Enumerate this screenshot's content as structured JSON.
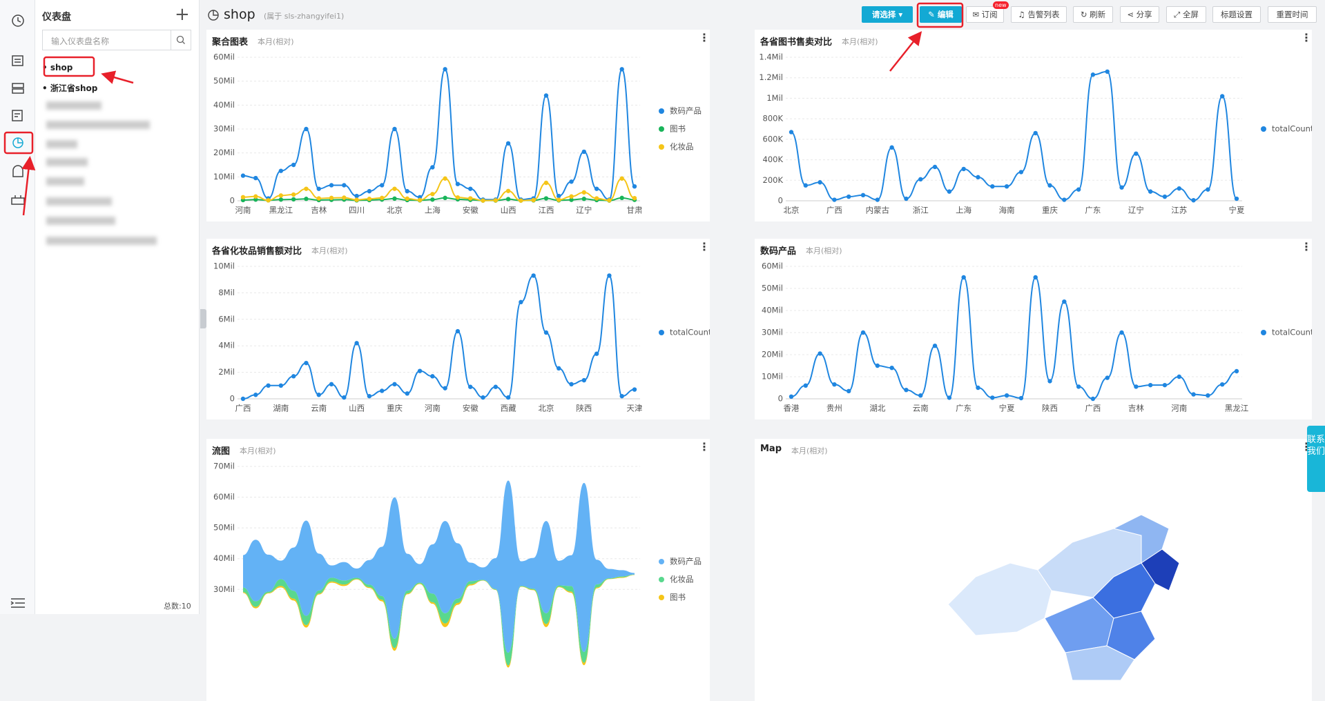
{
  "sidebar": {
    "title": "仪表盘",
    "search_placeholder": "输入仪表盘名称",
    "items": [
      "shop",
      "浙江省shop"
    ],
    "total": "总数:10"
  },
  "header": {
    "title": "shop",
    "owner": "(属于 sls-zhangyifei1)"
  },
  "toolbar": {
    "select": "请选择",
    "edit": "编辑",
    "subscribe": "订阅",
    "new_badge": "new",
    "alerts": "告警列表",
    "refresh": "刷新",
    "share": "分享",
    "fullscreen": "全屏",
    "title_settings": "标题设置",
    "reset_time": "重置时间"
  },
  "contact": "联系我们",
  "panels": [
    {
      "type": "line",
      "title": "聚合图表",
      "subtitle": "本月(相对)",
      "categories": [
        "河南",
        null,
        null,
        "黑龙江",
        null,
        null,
        "吉林",
        null,
        null,
        "四川",
        null,
        null,
        "北京",
        null,
        null,
        "上海",
        null,
        null,
        "安徽",
        null,
        null,
        "山西",
        null,
        null,
        "江西",
        null,
        null,
        "辽宁",
        null,
        null,
        null,
        "甘肃"
      ],
      "ylim": [
        0,
        60000000
      ],
      "yticks": [
        0,
        {
          "value": 10000000,
          "label": "10Mil"
        },
        {
          "value": 20000000,
          "label": "20Mil"
        },
        {
          "value": 30000000,
          "label": "30Mil"
        },
        {
          "value": 40000000,
          "label": "40Mil"
        },
        {
          "value": 50000000,
          "label": "50Mil"
        },
        {
          "value": 60000000,
          "label": "60Mil"
        }
      ],
      "series": [
        {
          "name": "数码产品",
          "color": "#1f86e0",
          "values": [
            10500000,
            9500000,
            1000000,
            12500000,
            15000000,
            30000000,
            5000000,
            6500000,
            6500000,
            2000000,
            4000000,
            6500000,
            30000000,
            4000000,
            1500000,
            14000000,
            55000000,
            7000000,
            5000000,
            500000,
            500000,
            24000000,
            500000,
            1000000,
            44000000,
            2000000,
            8000000,
            20500000,
            5000000,
            500000,
            55000000,
            6000000
          ]
        },
        {
          "name": "图书",
          "color": "#19b45a",
          "values": [
            300000,
            500000,
            200000,
            500000,
            600000,
            800000,
            300000,
            400000,
            500000,
            200000,
            300000,
            500000,
            900000,
            300000,
            200000,
            500000,
            1200000,
            600000,
            400000,
            100000,
            100000,
            700000,
            100000,
            200000,
            1000000,
            200000,
            400000,
            800000,
            300000,
            100000,
            1200000,
            400000
          ]
        },
        {
          "name": "化妆品",
          "color": "#f5c518",
          "values": [
            1500000,
            1800000,
            200000,
            2200000,
            2600000,
            5000000,
            1000000,
            1200000,
            1300000,
            400000,
            800000,
            1200000,
            5000000,
            900000,
            300000,
            2800000,
            9300000,
            1400000,
            1000000,
            100000,
            200000,
            4100000,
            100000,
            300000,
            7500000,
            400000,
            1800000,
            3500000,
            1000000,
            200000,
            9300000,
            1100000
          ]
        }
      ]
    },
    {
      "type": "line",
      "title": "各省图书售卖对比",
      "subtitle": "本月(相对)",
      "categories": [
        "北京",
        null,
        null,
        "广西",
        null,
        null,
        "内蒙古",
        null,
        null,
        "浙江",
        null,
        null,
        "上海",
        null,
        null,
        "海南",
        null,
        null,
        "重庆",
        null,
        null,
        "广东",
        null,
        null,
        "辽宁",
        null,
        null,
        "江苏",
        null,
        null,
        null,
        "宁夏"
      ],
      "ylim": [
        0,
        1400000
      ],
      "yticks": [
        0,
        {
          "value": 200000,
          "label": "200K"
        },
        {
          "value": 400000,
          "label": "400K"
        },
        {
          "value": 600000,
          "label": "600K"
        },
        {
          "value": 800000,
          "label": "800K"
        },
        {
          "value": 1000000,
          "label": "1Mil"
        },
        {
          "value": 1200000,
          "label": "1.2Mil"
        },
        {
          "value": 1400000,
          "label": "1.4Mil"
        }
      ],
      "series": [
        {
          "name": "totalCount",
          "color": "#1f86e0",
          "values": [
            670000,
            150000,
            180000,
            10000,
            40000,
            55000,
            10000,
            520000,
            20000,
            210000,
            330000,
            90000,
            310000,
            230000,
            140000,
            140000,
            280000,
            660000,
            150000,
            10000,
            110000,
            1230000,
            1260000,
            130000,
            460000,
            90000,
            40000,
            120000,
            5000,
            110000,
            1020000,
            20000
          ]
        }
      ]
    },
    {
      "type": "line",
      "title": "各省化妆品销售额对比",
      "subtitle": "本月(相对)",
      "categories": [
        "广西",
        null,
        null,
        "湖南",
        null,
        null,
        "云南",
        null,
        null,
        "山西",
        null,
        null,
        "重庆",
        null,
        null,
        "河南",
        null,
        null,
        "安徽",
        null,
        null,
        "西藏",
        null,
        null,
        "北京",
        null,
        null,
        "陕西",
        null,
        null,
        null,
        "天津"
      ],
      "ylim": [
        0,
        10000000
      ],
      "yticks": [
        0,
        {
          "value": 2000000,
          "label": "2Mil"
        },
        {
          "value": 4000000,
          "label": "4Mil"
        },
        {
          "value": 6000000,
          "label": "6Mil"
        },
        {
          "value": 8000000,
          "label": "8Mil"
        },
        {
          "value": 10000000,
          "label": "10Mil"
        }
      ],
      "series": [
        {
          "name": "totalCount",
          "color": "#1f86e0",
          "values": [
            0,
            300000,
            1000000,
            1000000,
            1700000,
            2700000,
            300000,
            1100000,
            100000,
            4200000,
            200000,
            600000,
            1100000,
            400000,
            2100000,
            1700000,
            800000,
            5100000,
            900000,
            100000,
            900000,
            100000,
            7300000,
            9300000,
            5000000,
            2300000,
            1100000,
            1400000,
            3400000,
            9300000,
            200000,
            700000
          ]
        }
      ]
    },
    {
      "type": "line",
      "title": "数码产品",
      "subtitle": "本月(相对)",
      "categories": [
        "香港",
        null,
        null,
        "贵州",
        null,
        null,
        "湖北",
        null,
        null,
        "云南",
        null,
        null,
        "广东",
        null,
        null,
        "宁夏",
        null,
        null,
        "陕西",
        null,
        null,
        "广西",
        null,
        null,
        "吉林",
        null,
        null,
        "河南",
        null,
        null,
        null,
        "黑龙江"
      ],
      "ylim": [
        0,
        60000000
      ],
      "yticks": [
        0,
        {
          "value": 10000000,
          "label": "10Mil"
        },
        {
          "value": 20000000,
          "label": "20Mil"
        },
        {
          "value": 30000000,
          "label": "30Mil"
        },
        {
          "value": 40000000,
          "label": "40Mil"
        },
        {
          "value": 50000000,
          "label": "50Mil"
        },
        {
          "value": 60000000,
          "label": "60Mil"
        }
      ],
      "series": [
        {
          "name": "totalCount",
          "color": "#1f86e0",
          "values": [
            1000000,
            6000000,
            20500000,
            6500000,
            3500000,
            30000000,
            15000000,
            14000000,
            4000000,
            1500000,
            24000000,
            500000,
            55000000,
            5000000,
            500000,
            1500000,
            300000,
            55000000,
            8000000,
            44000000,
            5500000,
            0,
            9500000,
            30000000,
            5500000,
            6200000,
            6200000,
            10000000,
            2000000,
            1500000,
            6500000,
            12500000
          ]
        }
      ]
    },
    {
      "type": "stream",
      "title": "流图",
      "subtitle": "本月(相对)",
      "ylim": [
        0,
        70000000
      ],
      "yticks": [
        {
          "value": 30000000,
          "label": "30Mil"
        },
        {
          "value": 40000000,
          "label": "40Mil"
        },
        {
          "value": 50000000,
          "label": "50Mil"
        },
        {
          "value": 60000000,
          "label": "60Mil"
        },
        {
          "value": 70000000,
          "label": "70Mil"
        }
      ],
      "series": [
        {
          "name": "数码产品",
          "color": "#63b2f5",
          "values": [
            10500000,
            20000000,
            12000000,
            6000000,
            14000000,
            31000000,
            12000000,
            4000000,
            6000000,
            3000000,
            8000000,
            16000000,
            46000000,
            12000000,
            6000000,
            16000000,
            30000000,
            18000000,
            6000000,
            4000000,
            10000000,
            56000000,
            8000000,
            10000000,
            30000000,
            8000000,
            10000000,
            55000000,
            8000000,
            3000000,
            2000000,
            500000
          ]
        },
        {
          "name": "化妆品",
          "color": "#59d88e",
          "values": [
            1500000,
            1800000,
            400000,
            2200000,
            2600000,
            3000000,
            1000000,
            1200000,
            1300000,
            400000,
            800000,
            1200000,
            3000000,
            900000,
            300000,
            2800000,
            3300000,
            1400000,
            1000000,
            200000,
            200000,
            4100000,
            200000,
            300000,
            3500000,
            400000,
            1800000,
            3500000,
            1000000,
            200000,
            300000,
            100000
          ]
        },
        {
          "name": "图书",
          "color": "#f5c518",
          "values": [
            300000,
            500000,
            200000,
            500000,
            600000,
            800000,
            300000,
            400000,
            500000,
            200000,
            300000,
            500000,
            900000,
            300000,
            200000,
            500000,
            1200000,
            600000,
            400000,
            100000,
            100000,
            700000,
            100000,
            200000,
            1000000,
            200000,
            400000,
            800000,
            300000,
            100000,
            200000,
            100000
          ]
        }
      ]
    },
    {
      "type": "map",
      "title": "Map",
      "subtitle": "本月(相对)"
    }
  ]
}
